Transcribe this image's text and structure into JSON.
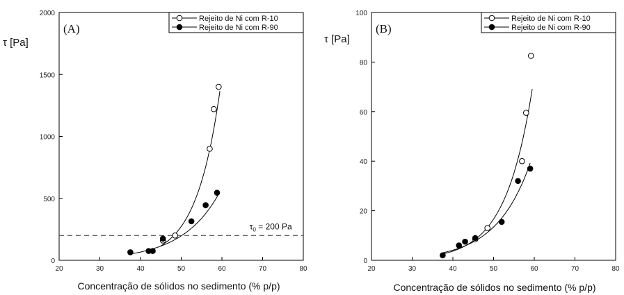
{
  "chart_data": [
    {
      "type": "scatter",
      "panel_label": "(A)",
      "ylabel": "τ [Pa]",
      "xlabel": "Concentração de sólidos no sedimento (% p/p)",
      "xlim": [
        20,
        80
      ],
      "ylim": [
        0,
        2000
      ],
      "xticks": [
        20,
        30,
        40,
        50,
        60,
        70,
        80
      ],
      "yticks": [
        0,
        500,
        1000,
        1500,
        2000
      ],
      "legend_position": "top-right",
      "grid": false,
      "series": [
        {
          "name": "Rejeito de Ni com R-10",
          "marker": "open-circle",
          "x": [
            45.5,
            48.5,
            57,
            58,
            59.2
          ],
          "y": [
            160,
            200,
            900,
            1220,
            1400
          ],
          "fit": {
            "model": "exponential",
            "x_from": 45,
            "x_to": 59.5,
            "a": 0.0566,
            "b": 0.1696
          }
        },
        {
          "name": "Rejeito de Ni com R-90",
          "marker": "filled-circle",
          "x": [
            37.5,
            42,
            43,
            45.5,
            52.5,
            56,
            58.8
          ],
          "y": [
            65,
            75,
            75,
            175,
            315,
            445,
            545
          ],
          "fit": {
            "model": "exponential",
            "x_from": 37,
            "x_to": 59,
            "a": 0.877,
            "b": 0.1083
          }
        }
      ],
      "reference_line": {
        "y": 200,
        "style": "dashed",
        "label_main": "τ",
        "label_sub": "0",
        "label_rest": " = 200 Pa"
      }
    },
    {
      "type": "scatter",
      "panel_label": "(B)",
      "ylabel": "τ [Pa]",
      "xlabel": "Concentração de sólidos no sedimento (% p/p)",
      "xlim": [
        20,
        80
      ],
      "ylim": [
        0,
        100
      ],
      "xticks": [
        20,
        30,
        40,
        50,
        60,
        70,
        80
      ],
      "yticks": [
        0,
        20,
        40,
        60,
        80,
        100
      ],
      "legend_position": "top-right",
      "grid": false,
      "series": [
        {
          "name": "Rejeito de Ni com R-10",
          "marker": "open-circle",
          "x": [
            45.5,
            48.5,
            57,
            58,
            59.2
          ],
          "y": [
            8.5,
            13,
            40,
            59.5,
            82.5
          ],
          "fit": {
            "model": "exponential",
            "x_from": 37,
            "x_to": 59.5,
            "a": 0.00914,
            "b": 0.1501
          }
        },
        {
          "name": "Rejeito de Ni com R-90",
          "marker": "filled-circle",
          "x": [
            37.5,
            41.5,
            43,
            45.5,
            52,
            56,
            59
          ],
          "y": [
            2,
            6,
            7.5,
            9,
            15.5,
            32,
            37
          ],
          "fit": {
            "model": "exponential",
            "x_from": 37,
            "x_to": 59,
            "a": 0.0348,
            "b": 0.1191
          }
        }
      ]
    }
  ]
}
